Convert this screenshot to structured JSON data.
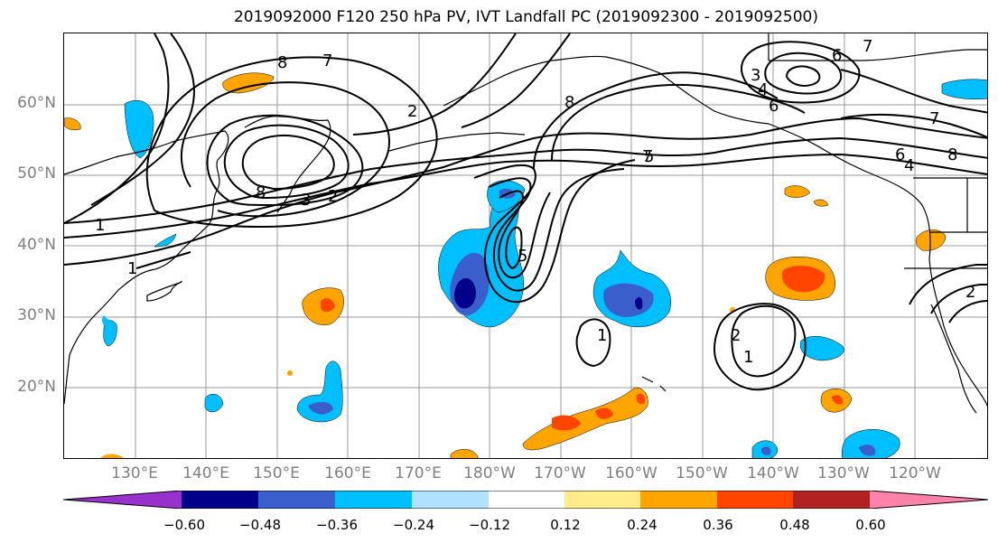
{
  "title": "2019092000 F120 250 hPa PV, IVT Landfall PC (2019092300 - 2019092500)",
  "lat_labels": [
    "60°N",
    "50°N",
    "40°N",
    "30°N",
    "20°N"
  ],
  "lon_labels": [
    "130°E",
    "140°E",
    "150°E",
    "160°E",
    "170°E",
    "180°W",
    "170°W",
    "160°W",
    "150°W",
    "140°W",
    "130°W",
    "120°W"
  ],
  "contour_labels": [
    "8",
    "7",
    "2",
    "8",
    "3",
    "2",
    "1",
    "1",
    "5",
    "8",
    "7",
    "3",
    "4",
    "6",
    "6",
    "7",
    "7",
    "6",
    "4",
    "8",
    "5",
    "1",
    "2",
    "1",
    "2"
  ],
  "colorbar": {
    "ticks": [
      "−0.60",
      "−0.48",
      "−0.36",
      "−0.24",
      "−0.12",
      "0.12",
      "0.24",
      "0.36",
      "0.48",
      "0.60"
    ],
    "colors": [
      "#9932cc",
      "#00008b",
      "#3a5fcd",
      "#00bfff",
      "#b0e2ff",
      "#ffffff",
      "#ffec8b",
      "#ffa500",
      "#ff4500",
      "#b22222",
      "#ff82ab"
    ]
  }
}
